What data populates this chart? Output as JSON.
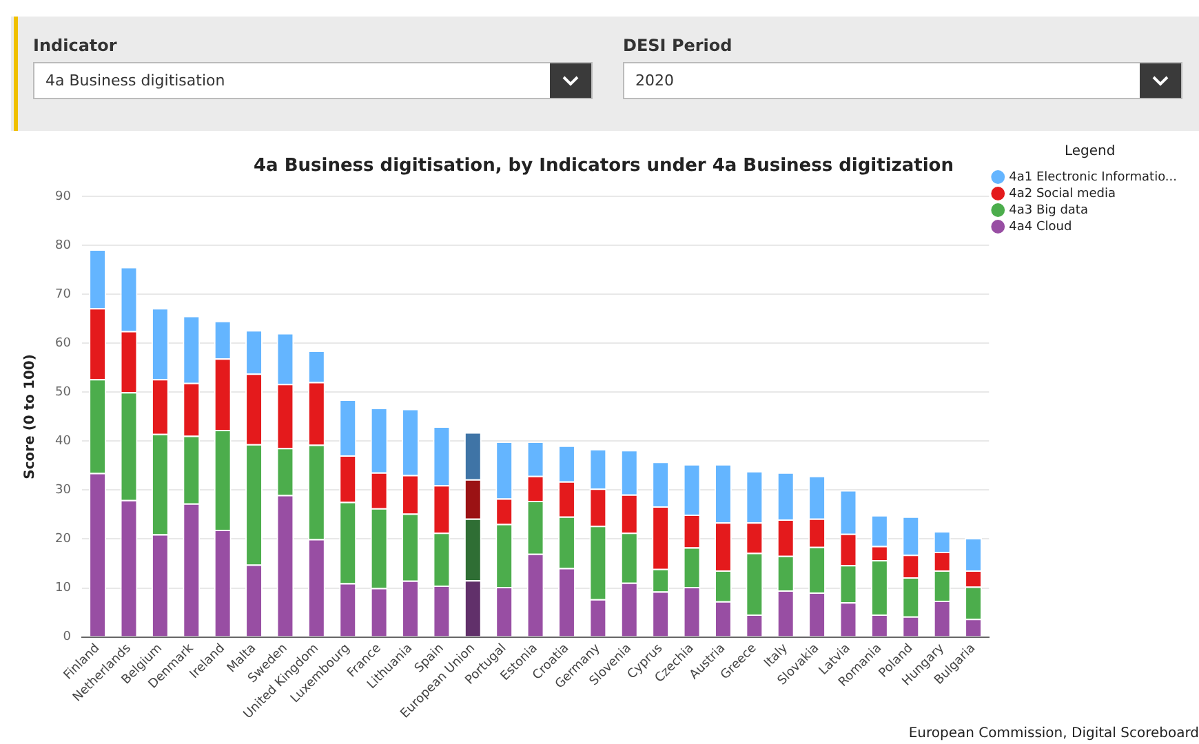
{
  "chart_data": {
    "type": "bar",
    "title": "4a Business digitisation, by Indicators under 4a Business digitization",
    "ylabel": "Score (0 to 100)",
    "legend_title": "Legend",
    "legend": "top right",
    "grid": "y",
    "stacked": true,
    "categories": [
      "Finland",
      "Netherlands",
      "Belgium",
      "Denmark",
      "Ireland",
      "Malta",
      "Sweden",
      "United Kingdom",
      "Luxembourg",
      "France",
      "Lithuania",
      "Spain",
      "European Union",
      "Portugal",
      "Estonia",
      "Croatia",
      "Germany",
      "Slovenia",
      "Cyprus",
      "Czechia",
      "Austria",
      "Greece",
      "Italy",
      "Slovakia",
      "Latvia",
      "Romania",
      "Poland",
      "Hungary",
      "Bulgaria"
    ],
    "ylim": [
      0,
      90
    ],
    "yticks": [
      0,
      10,
      20,
      30,
      40,
      50,
      60,
      70,
      80,
      90
    ],
    "series": [
      {
        "name": "4a4 Cloud",
        "color": "#984ea3",
        "colors": [
          "#984ea3",
          "#984ea3",
          "#984ea3",
          "#984ea3",
          "#984ea3",
          "#984ea3",
          "#984ea3",
          "#984ea3",
          "#984ea3",
          "#984ea3",
          "#984ea3",
          "#984ea3",
          "#61306a",
          "#984ea3",
          "#984ea3",
          "#984ea3",
          "#984ea3",
          "#984ea3",
          "#984ea3",
          "#984ea3",
          "#984ea3",
          "#984ea3",
          "#984ea3",
          "#984ea3",
          "#984ea3",
          "#984ea3",
          "#984ea3",
          "#984ea3",
          "#984ea3"
        ],
        "values": [
          33.5,
          28,
          21,
          27.3,
          21.9,
          14.8,
          29,
          20,
          11,
          10,
          11.5,
          10.5,
          11.6,
          10.2,
          17.0,
          14.1,
          7.7,
          11.1,
          9.3,
          10.2,
          7.3,
          4.6,
          9.5,
          9.1,
          7.1,
          4.6,
          4.2,
          7.4,
          3.7
        ]
      },
      {
        "name": "4a3 Big data",
        "color": "#4cad4c",
        "colors": [
          "#4cad4c",
          "#4cad4c",
          "#4cad4c",
          "#4cad4c",
          "#4cad4c",
          "#4cad4c",
          "#4cad4c",
          "#4cad4c",
          "#4cad4c",
          "#4cad4c",
          "#4cad4c",
          "#4cad4c",
          "#2f6e34",
          "#4cad4c",
          "#4cad4c",
          "#4cad4c",
          "#4cad4c",
          "#4cad4c",
          "#4cad4c",
          "#4cad4c",
          "#4cad4c",
          "#4cad4c",
          "#4cad4c",
          "#4cad4c",
          "#4cad4c",
          "#4cad4c",
          "#4cad4c",
          "#4cad4c",
          "#4cad4c"
        ],
        "values": [
          19.2,
          22,
          20.5,
          13.8,
          20.4,
          24.6,
          9.6,
          19.3,
          16.6,
          16.3,
          13.7,
          10.8,
          12.6,
          12.9,
          10.8,
          10.5,
          15.0,
          10.2,
          4.6,
          8.1,
          6.3,
          12.6,
          7.1,
          9.3,
          7.6,
          11.1,
          8.0,
          6.2,
          6.6
        ]
      },
      {
        "name": "4a2 Social media",
        "color": "#e41a1c",
        "colors": [
          "#e41a1c",
          "#e41a1c",
          "#e41a1c",
          "#e41a1c",
          "#e41a1c",
          "#e41a1c",
          "#e41a1c",
          "#e41a1c",
          "#e41a1c",
          "#e41a1c",
          "#e41a1c",
          "#e41a1c",
          "#9b1214",
          "#e41a1c",
          "#e41a1c",
          "#e41a1c",
          "#e41a1c",
          "#e41a1c",
          "#e41a1c",
          "#e41a1c",
          "#e41a1c",
          "#e41a1c",
          "#e41a1c",
          "#e41a1c",
          "#e41a1c",
          "#e41a1c",
          "#e41a1c",
          "#e41a1c",
          "#e41a1c"
        ],
        "values": [
          14.5,
          12.5,
          11.2,
          10.8,
          14.6,
          14.4,
          13.1,
          12.8,
          9.5,
          7.3,
          7.9,
          9.7,
          8.0,
          5.2,
          5.1,
          7.2,
          7.6,
          7.8,
          12.8,
          6.7,
          9.8,
          6.2,
          7.4,
          5.8,
          6.4,
          2.9,
          4.6,
          3.8,
          3.3
        ]
      },
      {
        "name": "4a1 Electronic Informatio...",
        "color": "#64b5ff",
        "colors": [
          "#64b5ff",
          "#64b5ff",
          "#64b5ff",
          "#64b5ff",
          "#64b5ff",
          "#64b5ff",
          "#64b5ff",
          "#64b5ff",
          "#64b5ff",
          "#64b5ff",
          "#64b5ff",
          "#64b5ff",
          "#3f74a6",
          "#64b5ff",
          "#64b5ff",
          "#64b5ff",
          "#64b5ff",
          "#64b5ff",
          "#64b5ff",
          "#64b5ff",
          "#64b5ff",
          "#64b5ff",
          "#64b5ff",
          "#64b5ff",
          "#64b5ff",
          "#64b5ff",
          "#64b5ff",
          "#64b5ff",
          "#64b5ff"
        ],
        "values": [
          12.0,
          13.1,
          14.5,
          13.7,
          7.7,
          8.9,
          10.4,
          6.4,
          11.4,
          13.2,
          13.5,
          12.0,
          9.6,
          11.6,
          7.0,
          7.3,
          8.1,
          9.1,
          9.1,
          10.3,
          11.9,
          10.5,
          9.6,
          8.7,
          8.9,
          6.3,
          7.8,
          4.2,
          6.6
        ]
      }
    ],
    "annotations": [
      "Indicator",
      "4a Business digitisation",
      "DESI Period",
      "2020",
      "European Commission, Digital Scoreboard"
    ]
  }
}
